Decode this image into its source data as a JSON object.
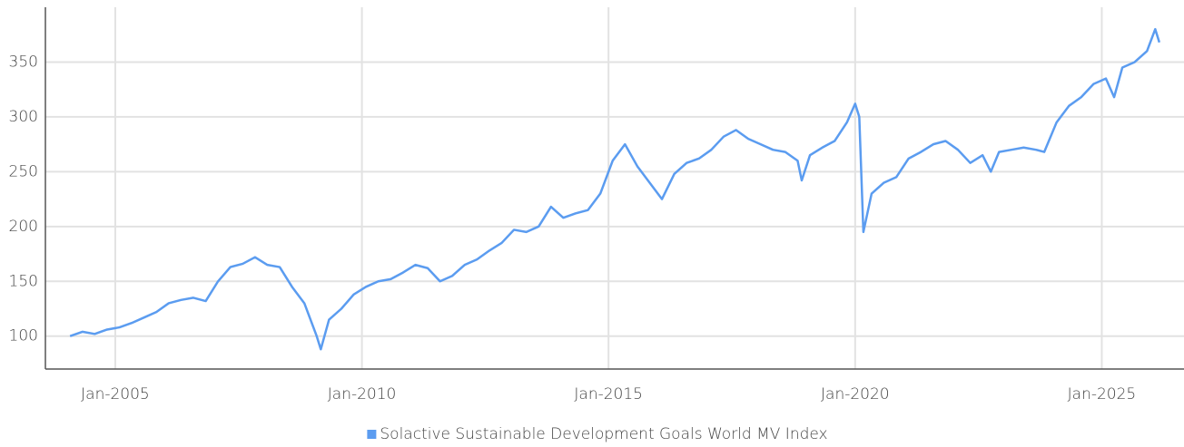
{
  "chart_data": {
    "type": "line",
    "x": [
      "2004-02",
      "2004-05",
      "2004-08",
      "2004-11",
      "2005-02",
      "2005-05",
      "2005-08",
      "2005-11",
      "2006-02",
      "2006-05",
      "2006-08",
      "2006-11",
      "2007-02",
      "2007-05",
      "2007-08",
      "2007-11",
      "2008-02",
      "2008-05",
      "2008-08",
      "2008-11",
      "2009-02",
      "2009-03",
      "2009-05",
      "2009-08",
      "2009-11",
      "2010-02",
      "2010-05",
      "2010-08",
      "2010-11",
      "2011-02",
      "2011-05",
      "2011-08",
      "2011-11",
      "2012-02",
      "2012-05",
      "2012-08",
      "2012-11",
      "2013-02",
      "2013-05",
      "2013-08",
      "2013-11",
      "2014-02",
      "2014-05",
      "2014-08",
      "2014-11",
      "2015-02",
      "2015-05",
      "2015-08",
      "2015-11",
      "2016-02",
      "2016-05",
      "2016-08",
      "2016-11",
      "2017-02",
      "2017-05",
      "2017-08",
      "2017-11",
      "2018-02",
      "2018-05",
      "2018-08",
      "2018-11",
      "2018-12",
      "2019-02",
      "2019-05",
      "2019-08",
      "2019-11",
      "2020-01",
      "2020-02",
      "2020-03",
      "2020-05",
      "2020-08",
      "2020-11",
      "2021-02",
      "2021-05",
      "2021-08",
      "2021-11",
      "2022-02",
      "2022-05",
      "2022-08",
      "2022-10",
      "2022-12",
      "2023-03",
      "2023-06",
      "2023-09",
      "2023-11",
      "2024-02",
      "2024-05",
      "2024-08",
      "2024-11",
      "2025-02",
      "2025-04",
      "2025-06",
      "2025-09",
      "2025-12",
      "2026-02",
      "2026-03"
    ],
    "series": [
      {
        "name": "Solactive Sustainable Development Goals World MV Index",
        "color": "#5b9cf0",
        "values": [
          100,
          104,
          102,
          106,
          108,
          112,
          117,
          122,
          130,
          133,
          135,
          132,
          150,
          163,
          166,
          172,
          165,
          163,
          145,
          130,
          100,
          88,
          115,
          125,
          138,
          145,
          150,
          152,
          158,
          165,
          162,
          150,
          155,
          165,
          170,
          178,
          185,
          197,
          195,
          200,
          218,
          208,
          212,
          215,
          230,
          260,
          275,
          255,
          240,
          225,
          248,
          258,
          262,
          270,
          282,
          288,
          280,
          275,
          270,
          268,
          260,
          242,
          265,
          272,
          278,
          295,
          312,
          300,
          195,
          230,
          240,
          245,
          262,
          268,
          275,
          278,
          270,
          258,
          265,
          250,
          268,
          270,
          272,
          270,
          268,
          295,
          310,
          318,
          330,
          335,
          318,
          345,
          350,
          360,
          380,
          368
        ]
      }
    ],
    "xlim": [
      "2003-08",
      "2026-09"
    ],
    "xticks": [
      {
        "value": "2005-01",
        "label": "Jan-2005"
      },
      {
        "value": "2010-01",
        "label": "Jan-2010"
      },
      {
        "value": "2015-01",
        "label": "Jan-2015"
      },
      {
        "value": "2020-01",
        "label": "Jan-2020"
      },
      {
        "value": "2025-01",
        "label": "Jan-2025"
      }
    ],
    "ylim": [
      70,
      400
    ],
    "yticks": [
      100,
      150,
      200,
      250,
      300,
      350
    ],
    "grid": true,
    "legend": "bottom"
  }
}
